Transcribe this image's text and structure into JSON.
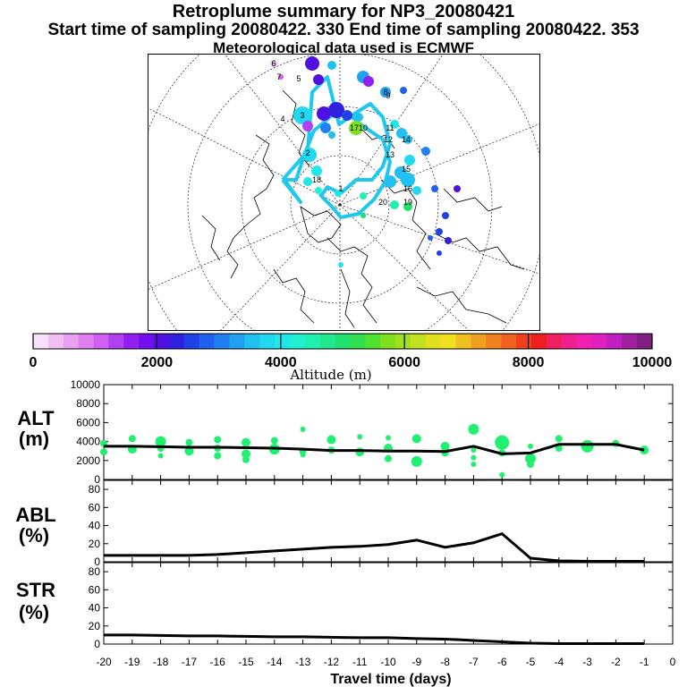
{
  "header": {
    "title": "Retroplume summary for NP3_20080421",
    "subtitle": "Start time of sampling 20080422.   330     End time of sampling 20080422.   353",
    "met_line": "Meteorological data used is ECMWF"
  },
  "colorbar": {
    "label": "Altitude (m)",
    "ticks": [
      "0",
      "2000",
      "4000",
      "6000",
      "8000",
      "10000"
    ],
    "colors": [
      "#f8e0f8",
      "#f0c0f0",
      "#e8a0f0",
      "#e080f0",
      "#d060f0",
      "#b040f0",
      "#9020f0",
      "#7010f0",
      "#5010e0",
      "#3020e0",
      "#2040e8",
      "#2060f0",
      "#2080f0",
      "#20a0f0",
      "#20c0f0",
      "#20d8f0",
      "#20e8e8",
      "#20f0d0",
      "#20f0b0",
      "#20e890",
      "#20e070",
      "#30e050",
      "#50e030",
      "#80e020",
      "#a0e020",
      "#c0e020",
      "#e0e020",
      "#f0e020",
      "#f0c020",
      "#f0a020",
      "#f08020",
      "#f06020",
      "#f04020",
      "#f02020",
      "#f02060",
      "#f02090",
      "#f020b0",
      "#e020c0",
      "#c020c0",
      "#a020a0",
      "#802080"
    ]
  },
  "map": {
    "cluster_labels": [
      "6",
      "7",
      "5",
      "4",
      "3",
      "2",
      "8",
      "9",
      "10",
      "11",
      "12",
      "13",
      "14",
      "15",
      "16",
      "17",
      "18",
      "19",
      "20",
      "1"
    ]
  },
  "chart_data": [
    {
      "panel": "ALT",
      "type": "line",
      "ylabel": "ALT\n(m)",
      "ylabel_lines": [
        "ALT",
        "(m)"
      ],
      "ylim": [
        0,
        10000
      ],
      "yticks": [
        "0",
        "2000",
        "4000",
        "6000",
        "8000",
        "10000"
      ],
      "x": [
        -20,
        -19,
        -18,
        -17,
        -16,
        -15,
        -14,
        -13,
        -12,
        -11,
        -10,
        -9,
        -8,
        -7,
        -6,
        -5,
        -4,
        -3,
        -2,
        -1
      ],
      "series": [
        {
          "name": "mean altitude",
          "values": [
            3500,
            3500,
            3450,
            3400,
            3400,
            3350,
            3300,
            3200,
            3050,
            3050,
            3000,
            3000,
            2950,
            3500,
            2700,
            2800,
            3700,
            3700,
            3700,
            3100
          ]
        }
      ],
      "cluster_points": [
        {
          "x": -20,
          "y": 3800,
          "r": 4
        },
        {
          "x": -20,
          "y": 2900,
          "r": 4
        },
        {
          "x": -19,
          "y": 4300,
          "r": 4
        },
        {
          "x": -19,
          "y": 3200,
          "r": 5
        },
        {
          "x": -18,
          "y": 4000,
          "r": 6
        },
        {
          "x": -18,
          "y": 3300,
          "r": 4
        },
        {
          "x": -18,
          "y": 2500,
          "r": 3
        },
        {
          "x": -17,
          "y": 3900,
          "r": 4
        },
        {
          "x": -17,
          "y": 3000,
          "r": 5
        },
        {
          "x": -16,
          "y": 4200,
          "r": 4
        },
        {
          "x": -16,
          "y": 3300,
          "r": 4
        },
        {
          "x": -16,
          "y": 2500,
          "r": 4
        },
        {
          "x": -15,
          "y": 3900,
          "r": 5
        },
        {
          "x": -15,
          "y": 2700,
          "r": 5
        },
        {
          "x": -15,
          "y": 2100,
          "r": 4
        },
        {
          "x": -14,
          "y": 4100,
          "r": 4
        },
        {
          "x": -14,
          "y": 3200,
          "r": 6
        },
        {
          "x": -13,
          "y": 5300,
          "r": 3
        },
        {
          "x": -13,
          "y": 3000,
          "r": 4
        },
        {
          "x": -13,
          "y": 2600,
          "r": 3
        },
        {
          "x": -12,
          "y": 4200,
          "r": 5
        },
        {
          "x": -12,
          "y": 3100,
          "r": 4
        },
        {
          "x": -11,
          "y": 4500,
          "r": 3
        },
        {
          "x": -11,
          "y": 2900,
          "r": 5
        },
        {
          "x": -10,
          "y": 4400,
          "r": 3
        },
        {
          "x": -10,
          "y": 3300,
          "r": 5
        },
        {
          "x": -10,
          "y": 2200,
          "r": 4
        },
        {
          "x": -9,
          "y": 4300,
          "r": 5
        },
        {
          "x": -9,
          "y": 1900,
          "r": 6
        },
        {
          "x": -8,
          "y": 3500,
          "r": 5
        },
        {
          "x": -8,
          "y": 2800,
          "r": 4
        },
        {
          "x": -7,
          "y": 5300,
          "r": 6
        },
        {
          "x": -7,
          "y": 3100,
          "r": 3
        },
        {
          "x": -7,
          "y": 2300,
          "r": 3
        },
        {
          "x": -7,
          "y": 1600,
          "r": 3
        },
        {
          "x": -6,
          "y": 3900,
          "r": 8
        },
        {
          "x": -6,
          "y": 2800,
          "r": 4
        },
        {
          "x": -6,
          "y": 500,
          "r": 3
        },
        {
          "x": -5,
          "y": 3500,
          "r": 3
        },
        {
          "x": -5,
          "y": 2200,
          "r": 6
        },
        {
          "x": -5,
          "y": 1600,
          "r": 4
        },
        {
          "x": -4,
          "y": 4300,
          "r": 4
        },
        {
          "x": -4,
          "y": 3300,
          "r": 4
        },
        {
          "x": -3,
          "y": 3500,
          "r": 7
        },
        {
          "x": -2,
          "y": 3800,
          "r": 4
        },
        {
          "x": -1,
          "y": 3100,
          "r": 5
        }
      ]
    },
    {
      "panel": "ABL",
      "type": "line",
      "ylabel": "ABL\n(%)",
      "ylabel_lines": [
        "ABL",
        "(%)"
      ],
      "ylim": [
        0,
        90
      ],
      "yticks": [
        "0",
        "20",
        "40",
        "60",
        "80"
      ],
      "x": [
        -20,
        -19,
        -18,
        -17,
        -16,
        -15,
        -14,
        -13,
        -12,
        -11,
        -10,
        -9,
        -8,
        -7,
        -6,
        -5,
        -4,
        -3,
        -2,
        -1
      ],
      "series": [
        {
          "name": "ABL fraction",
          "values": [
            7,
            7,
            7,
            7,
            8,
            10,
            12,
            14,
            16,
            17,
            19,
            24,
            16,
            21,
            31,
            4,
            1,
            0.5,
            0.5,
            0.5
          ]
        }
      ]
    },
    {
      "panel": "STR",
      "type": "line",
      "ylabel": "STR\n(%)",
      "ylabel_lines": [
        "STR",
        "(%)"
      ],
      "ylim": [
        0,
        90
      ],
      "yticks": [
        "0",
        "20",
        "40",
        "60",
        "80"
      ],
      "x": [
        -20,
        -19,
        -18,
        -17,
        -16,
        -15,
        -14,
        -13,
        -12,
        -11,
        -10,
        -9,
        -8,
        -7,
        -6,
        -5,
        -4,
        -3,
        -2,
        -1
      ],
      "series": [
        {
          "name": "STR fraction",
          "values": [
            10,
            10,
            9.5,
            9,
            9,
            8.5,
            8,
            8,
            7.5,
            7,
            7,
            6,
            5.5,
            4,
            2.5,
            1,
            0.5,
            0.5,
            0.5,
            0.5
          ]
        }
      ]
    }
  ],
  "xaxis": {
    "label": "Travel time (days)",
    "ticks": [
      "-20",
      "-19",
      "-18",
      "-17",
      "-16",
      "-15",
      "-14",
      "-13",
      "-12",
      "-11",
      "-10",
      "-9",
      "-8",
      "-7",
      "-6",
      "-5",
      "-4",
      "-3",
      "-2",
      "-1",
      "0"
    ]
  }
}
